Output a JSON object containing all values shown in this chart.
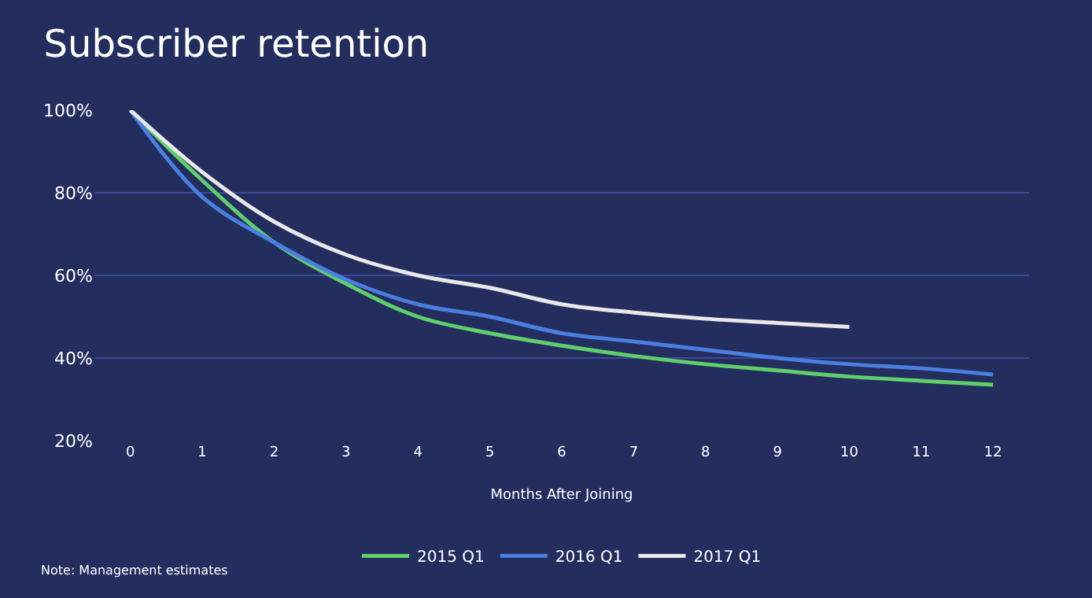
{
  "chart_data": {
    "type": "line",
    "title": "Subscriber retention",
    "xlabel": "Months After Joining",
    "x": [
      0,
      1,
      2,
      3,
      4,
      5,
      6,
      7,
      8,
      9,
      10,
      11,
      12
    ],
    "xlim": [
      -0.5,
      12.5
    ],
    "xticks": [
      0,
      1,
      2,
      3,
      4,
      5,
      6,
      7,
      8,
      9,
      10,
      11,
      12
    ],
    "ylim": [
      20,
      100
    ],
    "yticks": [
      {
        "value": 20,
        "label": "20%"
      },
      {
        "value": 40,
        "label": "40%"
      },
      {
        "value": 60,
        "label": "60%"
      },
      {
        "value": 80,
        "label": "80%"
      },
      {
        "value": 100,
        "label": "100%"
      }
    ],
    "grid": "y",
    "legend": "bottom",
    "marker": "none",
    "line_style": "solid",
    "annotations": [
      "Note: Management estimates"
    ],
    "series": [
      {
        "name": "2015 Q1",
        "color": "#5fcf6b",
        "values": [
          100,
          83,
          68,
          58,
          50,
          46,
          43,
          40.5,
          38.5,
          37,
          35.5,
          34.5,
          33.5
        ]
      },
      {
        "name": "2016 Q1",
        "color": "#4a7fe0",
        "values": [
          100,
          79,
          68,
          59,
          53,
          50,
          46,
          44,
          42,
          40,
          38.5,
          37.5,
          36
        ]
      },
      {
        "name": "2017 Q1",
        "color": "#e8e8e8",
        "values": [
          100,
          85,
          73,
          65,
          60,
          57,
          53,
          51,
          49.5,
          48.5,
          47.5,
          null,
          null
        ]
      }
    ]
  }
}
